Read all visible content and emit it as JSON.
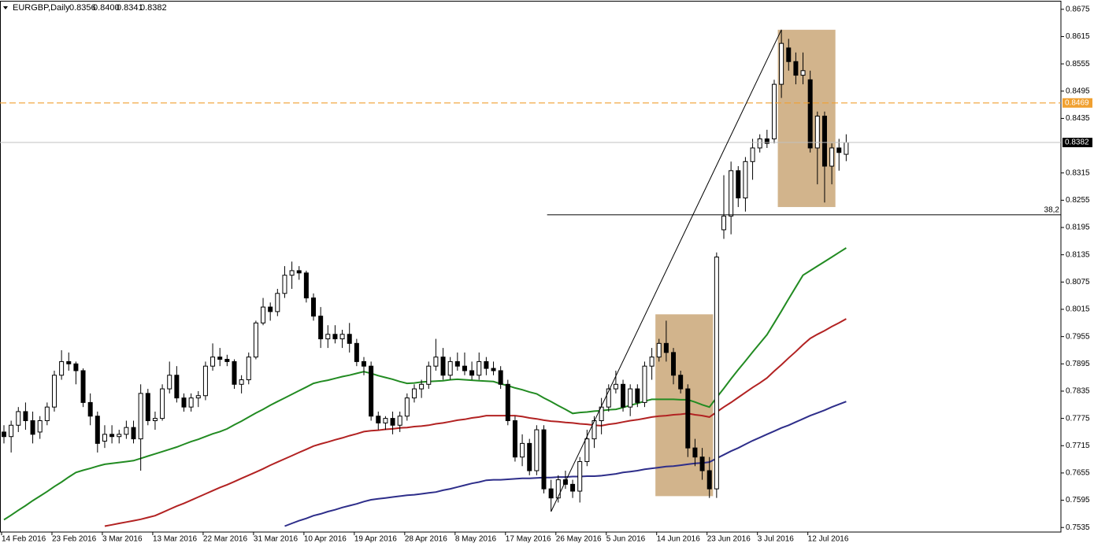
{
  "chart_data": {
    "type": "candlestick",
    "title": "EURGBP,Daily",
    "last_bar_labels": [
      "0.8356",
      "0.8400",
      "0.8341",
      "0.8382"
    ],
    "categories": [
      "14 Feb 2016",
      null,
      null,
      null,
      null,
      null,
      null,
      "23 Feb 2016",
      null,
      null,
      null,
      null,
      null,
      null,
      "3 Mar 2016",
      null,
      null,
      null,
      null,
      null,
      null,
      "13 Mar 2016",
      null,
      null,
      null,
      null,
      null,
      null,
      "22 Mar 2016",
      null,
      null,
      null,
      null,
      null,
      null,
      "31 Mar 2016",
      null,
      null,
      null,
      null,
      null,
      null,
      "10 Apr 2016",
      null,
      null,
      null,
      null,
      null,
      null,
      "19 Apr 2016",
      null,
      null,
      null,
      null,
      null,
      null,
      "28 Apr 2016",
      null,
      null,
      null,
      null,
      null,
      null,
      "8 May 2016",
      null,
      null,
      null,
      null,
      null,
      null,
      "17 May 2016",
      null,
      null,
      null,
      null,
      null,
      null,
      "26 May 2016",
      null,
      null,
      null,
      null,
      null,
      null,
      "5 Jun 2016",
      null,
      null,
      null,
      null,
      null,
      null,
      "14 Jun 2016",
      null,
      null,
      null,
      null,
      null,
      null,
      "23 Jun 2016",
      null,
      null,
      null,
      null,
      null,
      null,
      "3 Jul 2016",
      null,
      null,
      null,
      null,
      null,
      null,
      "12 Jul 2016",
      null,
      null,
      null,
      null,
      null
    ],
    "series": [
      {
        "type": "candlestick",
        "up_color": "#ffffff",
        "down_color": "#000000",
        "open": [
          0.7745,
          0.7735,
          0.776,
          0.779,
          0.777,
          0.7745,
          0.777,
          0.78,
          0.787,
          0.79,
          0.7895,
          0.788,
          0.781,
          0.778,
          0.7725,
          0.774,
          0.7735,
          0.774,
          0.7755,
          0.773,
          0.783,
          0.777,
          0.7775,
          0.784,
          0.787,
          0.782,
          0.78,
          0.782,
          0.7825,
          0.789,
          0.791,
          0.7905,
          0.79,
          0.785,
          0.786,
          0.791,
          0.7985,
          0.802,
          0.801,
          0.805,
          0.809,
          0.81,
          0.8095,
          0.804,
          0.8,
          0.795,
          0.796,
          0.795,
          0.796,
          0.794,
          0.79,
          0.789,
          0.778,
          0.7765,
          0.7775,
          0.776,
          0.778,
          0.782,
          0.784,
          0.785,
          0.789,
          0.791,
          0.787,
          0.79,
          0.789,
          0.788,
          0.787,
          0.79,
          0.7885,
          0.788,
          0.785,
          0.777,
          0.769,
          0.772,
          0.766,
          0.775,
          0.762,
          0.76,
          0.764,
          0.763,
          0.7615,
          0.768,
          0.773,
          0.777,
          0.78,
          0.784,
          0.785,
          0.78,
          0.784,
          0.781,
          0.789,
          0.791,
          0.794,
          0.792,
          0.787,
          0.784,
          0.771,
          0.769,
          0.766,
          0.762,
          0.819,
          0.822,
          0.832,
          0.826,
          0.834,
          0.837,
          0.839,
          0.839,
          0.851,
          0.859,
          0.856,
          0.853,
          0.852,
          0.837,
          0.844,
          0.833,
          0.837,
          0.8356
        ],
        "high": [
          0.776,
          0.777,
          0.78,
          0.781,
          0.779,
          0.778,
          0.781,
          0.788,
          0.7925,
          0.792,
          0.79,
          0.7885,
          0.783,
          0.779,
          0.776,
          0.776,
          0.775,
          0.777,
          0.777,
          0.785,
          0.784,
          0.779,
          0.785,
          0.79,
          0.789,
          0.783,
          0.783,
          0.7835,
          0.79,
          0.794,
          0.793,
          0.7915,
          0.7905,
          0.787,
          0.792,
          0.799,
          0.804,
          0.803,
          0.806,
          0.811,
          0.812,
          0.811,
          0.81,
          0.805,
          0.802,
          0.798,
          0.798,
          0.797,
          0.7985,
          0.795,
          0.791,
          0.79,
          0.779,
          0.778,
          0.779,
          0.779,
          0.783,
          0.785,
          0.786,
          0.79,
          0.795,
          0.793,
          0.791,
          0.792,
          0.792,
          0.79,
          0.792,
          0.791,
          0.79,
          0.789,
          0.786,
          0.778,
          0.774,
          0.773,
          0.776,
          0.776,
          0.764,
          0.765,
          0.766,
          0.764,
          0.769,
          0.775,
          0.778,
          0.782,
          0.785,
          0.788,
          0.786,
          0.785,
          0.785,
          0.79,
          0.793,
          0.795,
          0.799,
          0.793,
          0.788,
          0.785,
          0.773,
          0.771,
          0.769,
          0.814,
          0.831,
          0.834,
          0.833,
          0.835,
          0.839,
          0.84,
          0.841,
          0.852,
          0.863,
          0.861,
          0.858,
          0.858,
          0.854,
          0.845,
          0.845,
          0.838,
          0.839,
          0.84
        ],
        "low": [
          0.772,
          0.77,
          0.7745,
          0.775,
          0.772,
          0.773,
          0.776,
          0.779,
          0.786,
          0.788,
          0.785,
          0.78,
          0.776,
          0.77,
          0.771,
          0.772,
          0.772,
          0.773,
          0.772,
          0.766,
          0.776,
          0.775,
          0.777,
          0.783,
          0.781,
          0.779,
          0.779,
          0.78,
          0.7815,
          0.788,
          0.789,
          0.789,
          0.784,
          0.783,
          0.785,
          0.7905,
          0.798,
          0.799,
          0.8,
          0.804,
          0.806,
          0.808,
          0.803,
          0.799,
          0.793,
          0.793,
          0.794,
          0.793,
          0.792,
          0.789,
          0.787,
          0.777,
          0.775,
          0.775,
          0.774,
          0.7745,
          0.777,
          0.781,
          0.782,
          0.784,
          0.788,
          0.786,
          0.786,
          0.788,
          0.787,
          0.786,
          0.786,
          0.787,
          0.787,
          0.784,
          0.776,
          0.768,
          0.767,
          0.765,
          0.765,
          0.761,
          0.757,
          0.759,
          0.762,
          0.76,
          0.759,
          0.767,
          0.771,
          0.774,
          0.779,
          0.783,
          0.779,
          0.778,
          0.78,
          0.78,
          0.786,
          0.79,
          0.79,
          0.785,
          0.783,
          0.769,
          0.767,
          0.764,
          0.76,
          0.76,
          0.817,
          0.818,
          0.824,
          0.823,
          0.83,
          0.836,
          0.837,
          0.838,
          0.848,
          0.854,
          0.851,
          0.851,
          0.836,
          0.829,
          0.825,
          0.829,
          0.832,
          0.8341
        ],
        "close": [
          0.7735,
          0.776,
          0.779,
          0.777,
          0.774,
          0.777,
          0.78,
          0.787,
          0.79,
          0.7895,
          0.788,
          0.781,
          0.778,
          0.772,
          0.774,
          0.7735,
          0.774,
          0.7755,
          0.773,
          0.783,
          0.777,
          0.7775,
          0.784,
          0.787,
          0.782,
          0.78,
          0.782,
          0.7825,
          0.789,
          0.791,
          0.7905,
          0.79,
          0.785,
          0.786,
          0.791,
          0.7985,
          0.802,
          0.801,
          0.805,
          0.809,
          0.81,
          0.8095,
          0.804,
          0.8,
          0.795,
          0.796,
          0.795,
          0.796,
          0.794,
          0.79,
          0.789,
          0.778,
          0.7765,
          0.7775,
          0.776,
          0.778,
          0.782,
          0.784,
          0.785,
          0.789,
          0.791,
          0.787,
          0.79,
          0.789,
          0.788,
          0.787,
          0.79,
          0.7885,
          0.788,
          0.785,
          0.777,
          0.769,
          0.772,
          0.766,
          0.775,
          0.762,
          0.76,
          0.764,
          0.763,
          0.7615,
          0.768,
          0.773,
          0.777,
          0.78,
          0.784,
          0.785,
          0.78,
          0.784,
          0.781,
          0.789,
          0.791,
          0.794,
          0.792,
          0.787,
          0.784,
          0.771,
          0.769,
          0.766,
          0.762,
          0.813,
          0.822,
          0.832,
          0.826,
          0.834,
          0.837,
          0.839,
          0.838,
          0.851,
          0.86,
          0.856,
          0.853,
          0.854,
          0.837,
          0.844,
          0.833,
          0.837,
          0.836,
          0.8382
        ]
      },
      {
        "type": "line",
        "color": "#228b22",
        "values": [
          0.7552,
          0.7562,
          0.7573,
          0.7583,
          0.7594,
          0.7604,
          0.7614,
          0.7625,
          0.7635,
          0.7646,
          0.7656,
          0.7661,
          0.7665,
          0.767,
          0.7674,
          0.7676,
          0.7678,
          0.768,
          0.7682,
          0.7687,
          0.7692,
          0.7697,
          0.7702,
          0.7707,
          0.7712,
          0.7718,
          0.7724,
          0.7729,
          0.7735,
          0.7741,
          0.7746,
          0.7752,
          0.7761,
          0.7769,
          0.7778,
          0.7787,
          0.7795,
          0.7804,
          0.7812,
          0.782,
          0.7828,
          0.7836,
          0.7844,
          0.7852,
          0.7856,
          0.7859,
          0.7863,
          0.7867,
          0.787,
          0.7874,
          0.7878,
          0.7874,
          0.7869,
          0.7865,
          0.7861,
          0.7856,
          0.7852,
          0.7853,
          0.7855,
          0.7856,
          0.7857,
          0.7858,
          0.786,
          0.7861,
          0.786,
          0.7859,
          0.7858,
          0.7857,
          0.7856,
          0.7851,
          0.7847,
          0.7842,
          0.7838,
          0.7833,
          0.7829,
          0.782,
          0.7812,
          0.7803,
          0.7795,
          0.7786,
          0.7788,
          0.7789,
          0.7791,
          0.7792,
          0.7794,
          0.7795,
          0.7799,
          0.7804,
          0.7808,
          0.7813,
          0.7817,
          0.7817,
          0.7817,
          0.7817,
          0.7816,
          0.7816,
          0.7811,
          0.7805,
          0.78,
          0.7821,
          0.7841,
          0.7862,
          0.7882,
          0.7901,
          0.7921,
          0.794,
          0.7959,
          0.7985,
          0.8011,
          0.8038,
          0.8064,
          0.809,
          0.81,
          0.811,
          0.812,
          0.813,
          0.814,
          0.815
        ]
      },
      {
        "type": "line",
        "color": "#b22222",
        "values": [
          null,
          null,
          null,
          null,
          null,
          null,
          null,
          null,
          null,
          null,
          null,
          null,
          null,
          null,
          0.7538,
          0.7541,
          0.7544,
          0.7547,
          0.755,
          0.7553,
          0.7557,
          0.7561,
          0.7568,
          0.7575,
          0.7582,
          0.7588,
          0.7595,
          0.7602,
          0.7609,
          0.7616,
          0.7623,
          0.7629,
          0.7636,
          0.7643,
          0.765,
          0.7657,
          0.7664,
          0.7672,
          0.7679,
          0.7686,
          0.7693,
          0.77,
          0.7707,
          0.7714,
          0.7719,
          0.7723,
          0.7728,
          0.7732,
          0.7737,
          0.7741,
          0.7746,
          0.7748,
          0.7749,
          0.7751,
          0.7752,
          0.7754,
          0.7755,
          0.7757,
          0.7758,
          0.776,
          0.7763,
          0.7765,
          0.7768,
          0.7771,
          0.7773,
          0.7776,
          0.7778,
          0.7781,
          0.7781,
          0.7781,
          0.7781,
          0.7781,
          0.7779,
          0.7776,
          0.7774,
          0.7771,
          0.7769,
          0.7768,
          0.7766,
          0.7765,
          0.7763,
          0.7762,
          0.776,
          0.7759,
          0.7762,
          0.7764,
          0.7767,
          0.777,
          0.7772,
          0.7775,
          0.7778,
          0.778,
          0.7781,
          0.7783,
          0.7784,
          0.7786,
          0.7783,
          0.7781,
          0.7778,
          0.7789,
          0.78,
          0.781,
          0.7821,
          0.7832,
          0.7843,
          0.7853,
          0.7864,
          0.7879,
          0.7893,
          0.7908,
          0.7922,
          0.7937,
          0.7951,
          0.796,
          0.7968,
          0.7977,
          0.7985,
          0.7994
        ]
      },
      {
        "type": "line",
        "color": "#2e2e8a",
        "values": [
          null,
          null,
          null,
          null,
          null,
          null,
          null,
          null,
          null,
          null,
          null,
          null,
          null,
          null,
          null,
          null,
          null,
          null,
          null,
          null,
          null,
          null,
          null,
          null,
          null,
          null,
          null,
          null,
          null,
          null,
          null,
          null,
          null,
          null,
          null,
          null,
          null,
          null,
          null,
          0.7538,
          0.7544,
          0.755,
          0.7555,
          0.7561,
          0.7565,
          0.757,
          0.7574,
          0.7579,
          0.7583,
          0.7587,
          0.7592,
          0.7596,
          0.7598,
          0.76,
          0.7602,
          0.7604,
          0.7606,
          0.7607,
          0.7609,
          0.7611,
          0.7613,
          0.7617,
          0.762,
          0.7624,
          0.7628,
          0.7632,
          0.7635,
          0.7639,
          0.764,
          0.764,
          0.7641,
          0.7642,
          0.7643,
          0.7643,
          0.7644,
          0.7645,
          0.7645,
          0.7646,
          0.7646,
          0.7647,
          0.7647,
          0.7648,
          0.7648,
          0.7649,
          0.7651,
          0.7653,
          0.7656,
          0.7658,
          0.766,
          0.7663,
          0.7665,
          0.7667,
          0.7669,
          0.767,
          0.7672,
          0.7674,
          0.7676,
          0.7677,
          0.7679,
          0.7687,
          0.7695,
          0.7703,
          0.771,
          0.7718,
          0.7726,
          0.7733,
          0.774,
          0.7747,
          0.7754,
          0.776,
          0.7767,
          0.7774,
          0.7781,
          0.7787,
          0.7793,
          0.78,
          0.7806,
          0.7812
        ]
      }
    ],
    "ylim": [
      0.7525,
      0.8692
    ],
    "yticks": [
      0.8675,
      0.8615,
      0.8555,
      0.8495,
      0.8435,
      0.8315,
      0.8255,
      0.8195,
      0.8135,
      0.8075,
      0.8015,
      0.7955,
      0.7895,
      0.7835,
      0.7775,
      0.7715,
      0.7655,
      0.7595,
      0.7535
    ],
    "bid_line_color": "#c0c0c0",
    "price_level": {
      "value": 0.8469,
      "color": "#f0a030"
    },
    "fib_level": {
      "value": 0.8223,
      "label": "38,2",
      "start": 76,
      "color": "#000000"
    },
    "trendline": {
      "x": [
        76,
        108
      ],
      "y": [
        0.757,
        0.863
      ],
      "color": "#000000"
    },
    "zones": [
      {
        "x": [
          91,
          98
        ],
        "y": [
          0.8004,
          0.7604
        ],
        "color": "#d2b48c"
      },
      {
        "x": [
          108,
          115
        ],
        "y": [
          0.863,
          0.824
        ],
        "color": "#d2b48c"
      }
    ]
  }
}
